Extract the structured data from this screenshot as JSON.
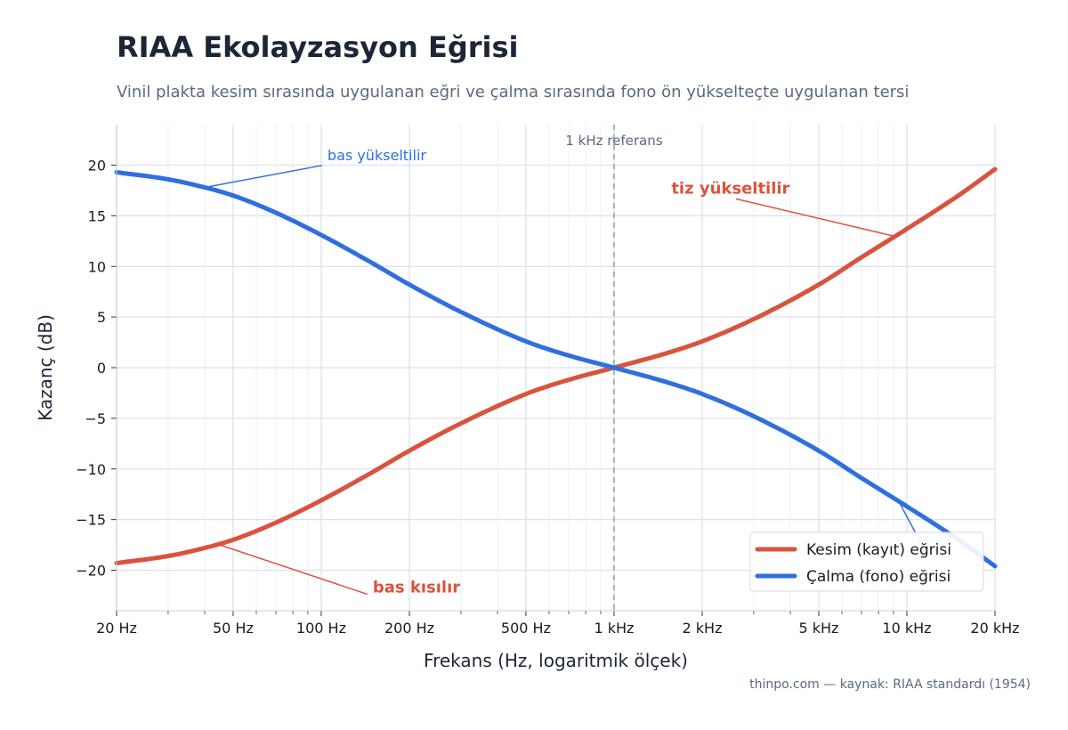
{
  "chart_data": {
    "type": "line",
    "title": "RIAA Ekolayzasyon Eğrisi",
    "subtitle": "Vinil plakta kesim sırasında uygulanan eğri ve çalma sırasında fono ön yükselteçte uygulanan tersi",
    "xlabel": "Frekans (Hz, logaritmik ölçek)",
    "ylabel": "Kazanç (dB)",
    "x_scale": "log",
    "xlim": [
      20,
      20000
    ],
    "ylim": [
      -24,
      24
    ],
    "x_ticks": [
      {
        "value": 20,
        "label": "20 Hz"
      },
      {
        "value": 50,
        "label": "50 Hz"
      },
      {
        "value": 100,
        "label": "100 Hz"
      },
      {
        "value": 200,
        "label": "200 Hz"
      },
      {
        "value": 500,
        "label": "500 Hz"
      },
      {
        "value": 1000,
        "label": "1 kHz"
      },
      {
        "value": 2000,
        "label": "2 kHz"
      },
      {
        "value": 5000,
        "label": "5 kHz"
      },
      {
        "value": 10000,
        "label": "10 kHz"
      },
      {
        "value": 20000,
        "label": "20 kHz"
      }
    ],
    "y_ticks": [
      {
        "value": 20,
        "label": "20"
      },
      {
        "value": 15,
        "label": "15"
      },
      {
        "value": 10,
        "label": "10"
      },
      {
        "value": 5,
        "label": "5"
      },
      {
        "value": 0,
        "label": "0"
      },
      {
        "value": -5,
        "label": "−5"
      },
      {
        "value": -10,
        "label": "−10"
      },
      {
        "value": -15,
        "label": "−15"
      },
      {
        "value": -20,
        "label": "−20"
      }
    ],
    "grid": true,
    "legend_position": "bottom-right",
    "series": [
      {
        "name": "Kesim (kayıt) eğrisi",
        "color": "#d9533e",
        "x": [
          20,
          30,
          40,
          50,
          70,
          100,
          150,
          200,
          300,
          500,
          700,
          1000,
          1500,
          2000,
          3000,
          5000,
          7000,
          10000,
          15000,
          20000
        ],
        "y": [
          -19.3,
          -18.6,
          -17.8,
          -17.0,
          -15.3,
          -13.1,
          -10.3,
          -8.2,
          -5.5,
          -2.6,
          -1.2,
          0.0,
          1.4,
          2.6,
          4.8,
          8.2,
          10.9,
          13.7,
          17.0,
          19.6
        ]
      },
      {
        "name": "Çalma (fono) eğrisi",
        "color": "#2f6fe0",
        "x": [
          20,
          30,
          40,
          50,
          70,
          100,
          150,
          200,
          300,
          500,
          700,
          1000,
          1500,
          2000,
          3000,
          5000,
          7000,
          10000,
          15000,
          20000
        ],
        "y": [
          19.3,
          18.6,
          17.8,
          17.0,
          15.3,
          13.1,
          10.3,
          8.2,
          5.5,
          2.6,
          1.2,
          0.0,
          -1.4,
          -2.6,
          -4.8,
          -8.2,
          -10.9,
          -13.7,
          -17.0,
          -19.6
        ]
      }
    ],
    "reference_line": {
      "x": 1000,
      "label": "1 kHz referans"
    },
    "annotations": [
      {
        "text": "bas yükseltilir",
        "series": 1,
        "x": 40,
        "y": 17.8,
        "label_x": 105,
        "label_y": 20.5,
        "color": "#2f6fe0",
        "bold": false
      },
      {
        "text": "tiz yükseltilir",
        "series": 0,
        "x": 9000,
        "y": 13.0,
        "label_x": 2500,
        "label_y": 17.2,
        "color": "#d9533e",
        "bold": true
      },
      {
        "text": "bas kısılır",
        "series": 0,
        "x": 45,
        "y": -17.5,
        "label_x": 150,
        "label_y": -22.2,
        "color": "#d9533e",
        "bold": true
      },
      {
        "text": "",
        "series": 1,
        "x": 9500,
        "y": -13.5,
        "label_x": 11500,
        "label_y": -18.0,
        "color": "#2f6fe0",
        "bold": false
      }
    ]
  },
  "footer": {
    "credit": "thinpo.com — kaynak: RIAA standardı (1954)"
  }
}
